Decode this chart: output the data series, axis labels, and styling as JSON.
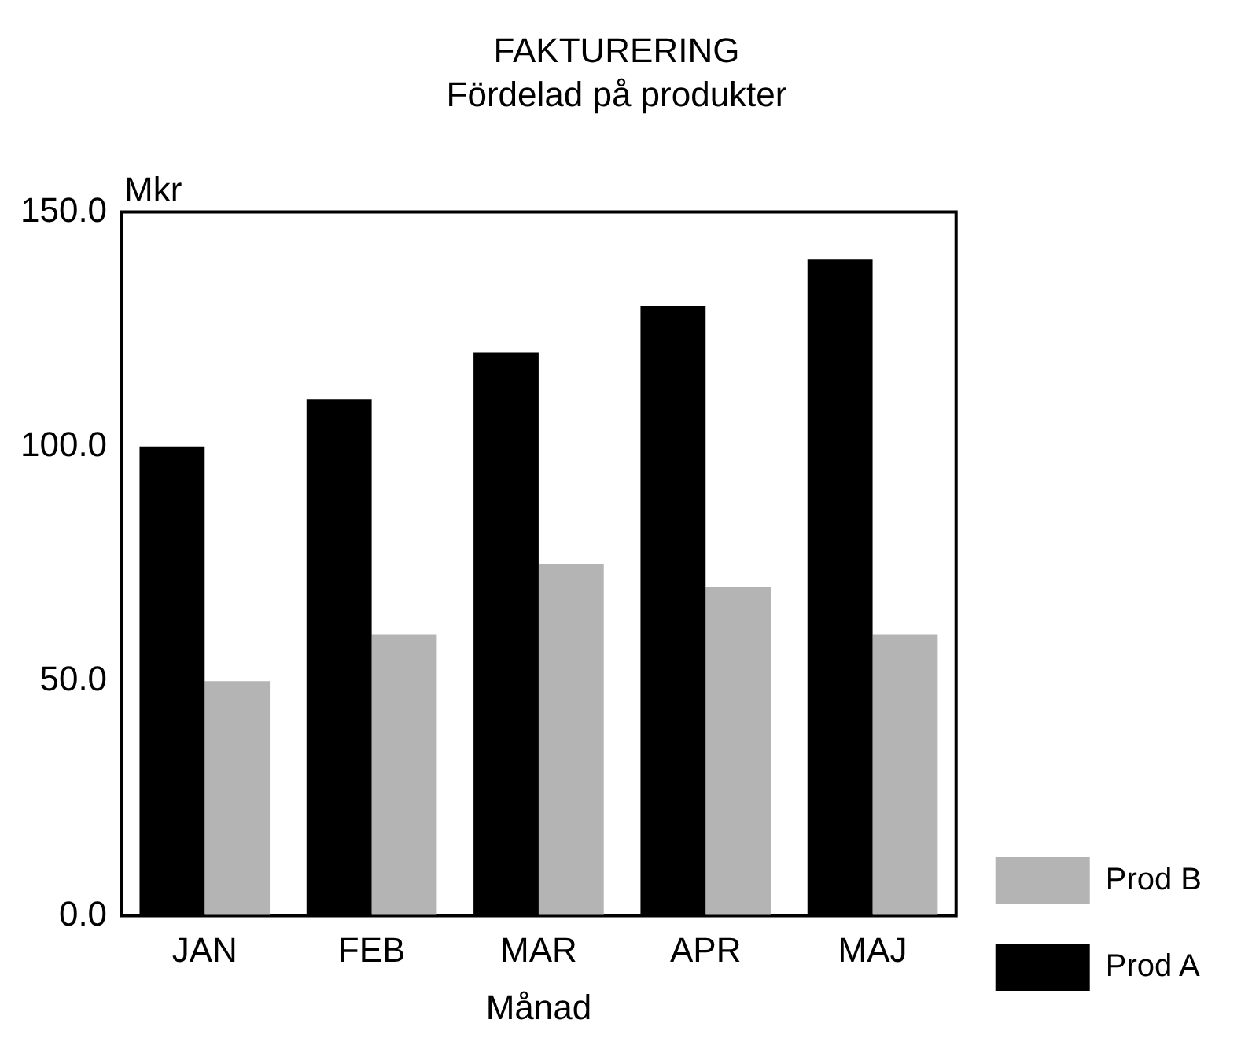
{
  "chart_data": {
    "type": "bar",
    "title": "FAKTURERING",
    "subtitle": "Fördelad på produkter",
    "xlabel": "Månad",
    "ylabel": "Mkr",
    "categories": [
      "JAN",
      "FEB",
      "MAR",
      "APR",
      "MAJ"
    ],
    "series": [
      {
        "name": "Prod A",
        "color": "#000000",
        "values": [
          100,
          110,
          120,
          130,
          140
        ]
      },
      {
        "name": "Prod B",
        "color": "#b4b4b4",
        "values": [
          50,
          60,
          75,
          70,
          60
        ]
      }
    ],
    "ylim": [
      0,
      150
    ],
    "yticks": [
      {
        "value": 0,
        "label": "0.0"
      },
      {
        "value": 50,
        "label": "50.0"
      },
      {
        "value": 100,
        "label": "100.0"
      },
      {
        "value": 150,
        "label": "150.0"
      }
    ],
    "grid": false,
    "legend": "bottom right"
  }
}
